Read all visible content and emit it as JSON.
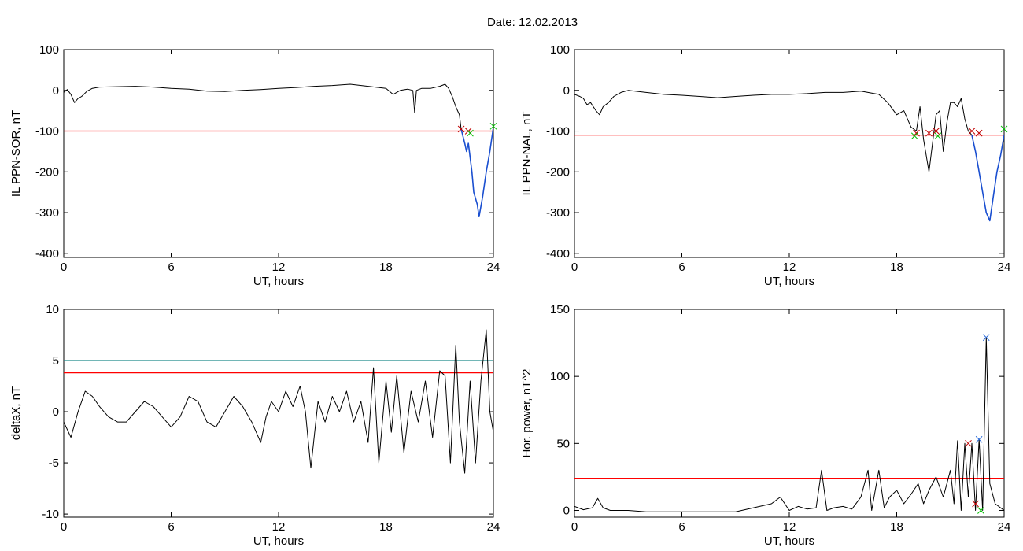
{
  "header": {
    "date_label": "Date:",
    "date_value": "12.02.2013"
  },
  "colors": {
    "trace": "#000000",
    "red_line": "#ff0000",
    "teal_line": "#1f8a8a",
    "blue_segment": "#1a4fd0",
    "green_marker": "#00c000",
    "red_marker": "#c00000",
    "blue_marker": "#2a6ad8"
  },
  "chart_data": [
    {
      "id": "sor",
      "type": "line",
      "ylabel": "IL PPN-SOR, nT",
      "xlabel": "UT, hours",
      "xlim": [
        0,
        24
      ],
      "ylim": [
        -410,
        100
      ],
      "xticks": [
        0,
        6,
        12,
        18,
        24
      ],
      "yticks": [
        100,
        0,
        -100,
        -200,
        -300,
        -400
      ],
      "hlines": [
        {
          "y": -100,
          "color": "red"
        }
      ],
      "series": [
        {
          "color": "black",
          "points": [
            [
              0,
              -5
            ],
            [
              0.2,
              2
            ],
            [
              0.4,
              -10
            ],
            [
              0.6,
              -30
            ],
            [
              0.8,
              -20
            ],
            [
              1.0,
              -15
            ],
            [
              1.3,
              -2
            ],
            [
              1.6,
              5
            ],
            [
              2.0,
              8
            ],
            [
              3,
              9
            ],
            [
              4,
              10
            ],
            [
              5,
              8
            ],
            [
              6,
              5
            ],
            [
              7,
              3
            ],
            [
              8,
              -2
            ],
            [
              9,
              -3
            ],
            [
              10,
              0
            ],
            [
              11,
              2
            ],
            [
              12,
              5
            ],
            [
              13,
              7
            ],
            [
              14,
              10
            ],
            [
              15,
              12
            ],
            [
              16,
              15
            ],
            [
              17,
              10
            ],
            [
              18,
              5
            ],
            [
              18.4,
              -10
            ],
            [
              18.8,
              0
            ],
            [
              19.2,
              3
            ],
            [
              19.5,
              0
            ],
            [
              19.6,
              -55
            ],
            [
              19.7,
              0
            ],
            [
              20,
              5
            ],
            [
              20.5,
              5
            ],
            [
              21,
              10
            ],
            [
              21.3,
              15
            ],
            [
              21.5,
              5
            ],
            [
              21.7,
              -15
            ],
            [
              21.9,
              -40
            ],
            [
              22.1,
              -60
            ],
            [
              22.2,
              -95
            ]
          ]
        },
        {
          "color": "blue",
          "points": [
            [
              22.2,
              -95
            ],
            [
              22.4,
              -130
            ],
            [
              22.5,
              -150
            ],
            [
              22.6,
              -130
            ],
            [
              22.8,
              -200
            ],
            [
              22.9,
              -250
            ],
            [
              23.1,
              -280
            ],
            [
              23.2,
              -310
            ],
            [
              23.4,
              -260
            ],
            [
              23.6,
              -200
            ],
            [
              23.8,
              -150
            ],
            [
              24,
              -90
            ]
          ]
        }
      ],
      "markers": [
        {
          "x": 22.2,
          "y": -95,
          "color": "red"
        },
        {
          "x": 22.6,
          "y": -100,
          "color": "red"
        },
        {
          "x": 22.7,
          "y": -105,
          "color": "green"
        },
        {
          "x": 24,
          "y": -88,
          "color": "green"
        }
      ]
    },
    {
      "id": "nal",
      "type": "line",
      "ylabel": "IL PPN-NAL, nT",
      "xlabel": "UT, hours",
      "xlim": [
        0,
        24
      ],
      "ylim": [
        -410,
        100
      ],
      "xticks": [
        0,
        6,
        12,
        18,
        24
      ],
      "yticks": [
        100,
        0,
        -100,
        -200,
        -300,
        -400
      ],
      "hlines": [
        {
          "y": -110,
          "color": "red"
        }
      ],
      "series": [
        {
          "color": "black",
          "points": [
            [
              0,
              -10
            ],
            [
              0.3,
              -15
            ],
            [
              0.5,
              -20
            ],
            [
              0.7,
              -35
            ],
            [
              0.9,
              -30
            ],
            [
              1.2,
              -50
            ],
            [
              1.4,
              -60
            ],
            [
              1.6,
              -40
            ],
            [
              1.9,
              -30
            ],
            [
              2.2,
              -15
            ],
            [
              2.6,
              -5
            ],
            [
              3,
              0
            ],
            [
              4,
              -5
            ],
            [
              5,
              -10
            ],
            [
              6,
              -12
            ],
            [
              7,
              -15
            ],
            [
              8,
              -18
            ],
            [
              9,
              -15
            ],
            [
              10,
              -12
            ],
            [
              11,
              -10
            ],
            [
              12,
              -10
            ],
            [
              13,
              -8
            ],
            [
              14,
              -5
            ],
            [
              15,
              -5
            ],
            [
              16,
              -2
            ],
            [
              17,
              -10
            ],
            [
              17.5,
              -30
            ],
            [
              18,
              -60
            ],
            [
              18.4,
              -50
            ],
            [
              18.8,
              -90
            ],
            [
              19.1,
              -100
            ],
            [
              19.3,
              -40
            ],
            [
              19.5,
              -120
            ],
            [
              19.8,
              -200
            ],
            [
              20,
              -130
            ],
            [
              20.2,
              -60
            ],
            [
              20.4,
              -50
            ],
            [
              20.6,
              -150
            ],
            [
              20.8,
              -80
            ],
            [
              21,
              -30
            ],
            [
              21.2,
              -30
            ],
            [
              21.4,
              -40
            ],
            [
              21.6,
              -20
            ],
            [
              21.8,
              -70
            ],
            [
              22,
              -100
            ],
            [
              22.2,
              -110
            ]
          ]
        },
        {
          "color": "blue",
          "points": [
            [
              22.2,
              -110
            ],
            [
              22.4,
              -150
            ],
            [
              22.6,
              -200
            ],
            [
              22.8,
              -250
            ],
            [
              23,
              -300
            ],
            [
              23.2,
              -320
            ],
            [
              23.4,
              -260
            ],
            [
              23.6,
              -200
            ],
            [
              23.8,
              -160
            ],
            [
              24,
              -110
            ]
          ]
        }
      ],
      "markers": [
        {
          "x": 19.1,
          "y": -105,
          "color": "red"
        },
        {
          "x": 19.8,
          "y": -105,
          "color": "red"
        },
        {
          "x": 20.2,
          "y": -100,
          "color": "red"
        },
        {
          "x": 19.0,
          "y": -112,
          "color": "green"
        },
        {
          "x": 20.3,
          "y": -112,
          "color": "green"
        },
        {
          "x": 22.2,
          "y": -100,
          "color": "red"
        },
        {
          "x": 22.6,
          "y": -105,
          "color": "red"
        },
        {
          "x": 24,
          "y": -95,
          "color": "green"
        }
      ]
    },
    {
      "id": "deltax",
      "type": "line",
      "ylabel": "deltaX, nT",
      "xlabel": "UT, hours",
      "xlim": [
        0,
        24
      ],
      "ylim": [
        -10.3,
        10
      ],
      "xticks": [
        0,
        6,
        12,
        18,
        24
      ],
      "yticks": [
        10,
        5,
        0,
        -5,
        -10
      ],
      "hlines": [
        {
          "y": 5,
          "color": "teal"
        },
        {
          "y": 3.8,
          "color": "red"
        }
      ],
      "series": [
        {
          "color": "black",
          "points": [
            [
              0,
              -1
            ],
            [
              0.4,
              -2.5
            ],
            [
              0.8,
              0
            ],
            [
              1.2,
              2
            ],
            [
              1.6,
              1.5
            ],
            [
              2,
              0.5
            ],
            [
              2.5,
              -0.5
            ],
            [
              3,
              -1
            ],
            [
              3.5,
              -1
            ],
            [
              4,
              0
            ],
            [
              4.5,
              1
            ],
            [
              5,
              0.5
            ],
            [
              5.5,
              -0.5
            ],
            [
              6,
              -1.5
            ],
            [
              6.5,
              -0.5
            ],
            [
              7,
              1.5
            ],
            [
              7.5,
              1
            ],
            [
              8,
              -1
            ],
            [
              8.5,
              -1.5
            ],
            [
              9,
              0
            ],
            [
              9.5,
              1.5
            ],
            [
              10,
              0.5
            ],
            [
              10.5,
              -1
            ],
            [
              11,
              -3
            ],
            [
              11.3,
              -0.5
            ],
            [
              11.6,
              1
            ],
            [
              12,
              0
            ],
            [
              12.4,
              2
            ],
            [
              12.8,
              0.5
            ],
            [
              13.2,
              2.5
            ],
            [
              13.5,
              0
            ],
            [
              13.8,
              -5.5
            ],
            [
              14.2,
              1
            ],
            [
              14.6,
              -1
            ],
            [
              15,
              1.5
            ],
            [
              15.4,
              0
            ],
            [
              15.8,
              2
            ],
            [
              16.2,
              -1
            ],
            [
              16.6,
              1
            ],
            [
              17,
              -3
            ],
            [
              17.3,
              4.3
            ],
            [
              17.6,
              -5
            ],
            [
              18,
              3
            ],
            [
              18.3,
              -2
            ],
            [
              18.6,
              3.5
            ],
            [
              19,
              -4
            ],
            [
              19.4,
              2
            ],
            [
              19.8,
              -1
            ],
            [
              20.2,
              3
            ],
            [
              20.6,
              -2.5
            ],
            [
              21,
              4
            ],
            [
              21.3,
              3.5
            ],
            [
              21.6,
              -5
            ],
            [
              21.9,
              6.5
            ],
            [
              22.1,
              -1
            ],
            [
              22.4,
              -6
            ],
            [
              22.7,
              3
            ],
            [
              23,
              -5
            ],
            [
              23.3,
              3
            ],
            [
              23.6,
              8
            ],
            [
              23.8,
              0
            ],
            [
              24,
              -2
            ]
          ]
        }
      ],
      "markers": []
    },
    {
      "id": "power",
      "type": "line",
      "ylabel": "Hor. power, nT^2",
      "xlabel": "UT, hours",
      "xlim": [
        0,
        24
      ],
      "ylim": [
        -5,
        150
      ],
      "xticks": [
        0,
        6,
        12,
        18,
        24
      ],
      "yticks": [
        150,
        100,
        50,
        0
      ],
      "hlines": [
        {
          "y": 24,
          "color": "red"
        }
      ],
      "series": [
        {
          "color": "black",
          "points": [
            [
              0,
              3
            ],
            [
              0.5,
              0.5
            ],
            [
              1,
              2
            ],
            [
              1.3,
              9
            ],
            [
              1.6,
              2
            ],
            [
              2,
              0
            ],
            [
              3,
              0
            ],
            [
              4,
              -1
            ],
            [
              5,
              -1
            ],
            [
              6,
              -1
            ],
            [
              7,
              -1
            ],
            [
              8,
              -1
            ],
            [
              9,
              -1
            ],
            [
              10,
              2
            ],
            [
              11,
              5
            ],
            [
              11.5,
              10
            ],
            [
              12,
              0
            ],
            [
              12.5,
              3
            ],
            [
              13,
              1
            ],
            [
              13.5,
              2
            ],
            [
              13.8,
              30
            ],
            [
              14.1,
              0
            ],
            [
              14.5,
              2
            ],
            [
              15,
              3
            ],
            [
              15.5,
              1
            ],
            [
              16,
              10
            ],
            [
              16.4,
              30
            ],
            [
              16.6,
              0
            ],
            [
              17,
              30
            ],
            [
              17.3,
              2
            ],
            [
              17.6,
              10
            ],
            [
              18,
              15
            ],
            [
              18.4,
              5
            ],
            [
              18.8,
              12
            ],
            [
              19.2,
              20
            ],
            [
              19.5,
              5
            ],
            [
              19.8,
              15
            ],
            [
              20.2,
              25
            ],
            [
              20.6,
              10
            ],
            [
              21,
              30
            ],
            [
              21.2,
              5
            ],
            [
              21.4,
              52
            ],
            [
              21.6,
              0
            ],
            [
              21.8,
              50
            ],
            [
              22.0,
              10
            ],
            [
              22.2,
              50
            ],
            [
              22.4,
              0
            ],
            [
              22.6,
              53
            ],
            [
              22.8,
              0
            ],
            [
              23.0,
              129
            ],
            [
              23.2,
              20
            ],
            [
              23.5,
              5
            ],
            [
              24,
              0
            ]
          ]
        }
      ],
      "markers": [
        {
          "x": 22.0,
          "y": 50,
          "color": "red"
        },
        {
          "x": 22.4,
          "y": 5,
          "color": "red"
        },
        {
          "x": 22.6,
          "y": 53,
          "color": "blue"
        },
        {
          "x": 23.0,
          "y": 129,
          "color": "blue"
        },
        {
          "x": 22.7,
          "y": 0,
          "color": "green"
        }
      ]
    }
  ]
}
